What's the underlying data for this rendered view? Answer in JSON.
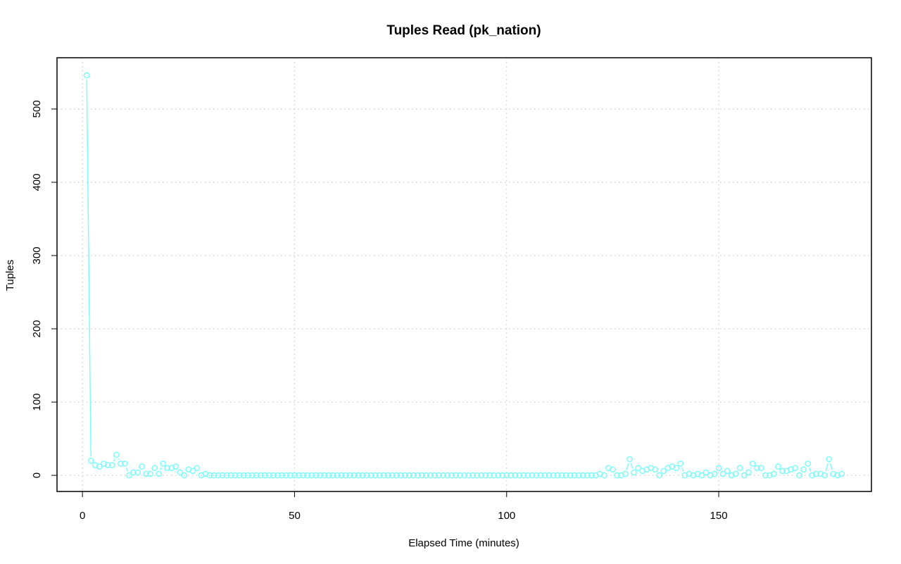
{
  "chart_data": {
    "type": "line",
    "title": "Tuples Read (pk_nation)",
    "xlabel": "Elapsed Time (minutes)",
    "ylabel": "Tuples",
    "xlim": [
      -6,
      186
    ],
    "ylim": [
      -22,
      570
    ],
    "x_ticks": [
      0,
      50,
      100,
      150
    ],
    "y_ticks": [
      0,
      100,
      200,
      300,
      400,
      500
    ],
    "x_tick_labels": [
      "0",
      "50",
      "100",
      "150"
    ],
    "y_tick_labels": [
      "0",
      "100",
      "200",
      "300",
      "400",
      "500"
    ],
    "grid": true,
    "series_color": "#7ffbfb",
    "series": [
      {
        "x": [
          1,
          2,
          3,
          4,
          5,
          6,
          7,
          8,
          9,
          10,
          11,
          12,
          13,
          14,
          15,
          16,
          17,
          18,
          19,
          20,
          21,
          22,
          23,
          24,
          25,
          26,
          27,
          28,
          29,
          30,
          31,
          32,
          33,
          34,
          35,
          36,
          37,
          38,
          39,
          40,
          41,
          42,
          43,
          44,
          45,
          46,
          47,
          48,
          49,
          50,
          51,
          52,
          53,
          54,
          55,
          56,
          57,
          58,
          59,
          60,
          61,
          62,
          63,
          64,
          65,
          66,
          67,
          68,
          69,
          70,
          71,
          72,
          73,
          74,
          75,
          76,
          77,
          78,
          79,
          80,
          81,
          82,
          83,
          84,
          85,
          86,
          87,
          88,
          89,
          90,
          91,
          92,
          93,
          94,
          95,
          96,
          97,
          98,
          99,
          100,
          101,
          102,
          103,
          104,
          105,
          106,
          107,
          108,
          109,
          110,
          111,
          112,
          113,
          114,
          115,
          116,
          117,
          118,
          119,
          120,
          121,
          122,
          123,
          124,
          125,
          126,
          127,
          128,
          129,
          130,
          131,
          132,
          133,
          134,
          135,
          136,
          137,
          138,
          139,
          140,
          141,
          142,
          143,
          144,
          145,
          146,
          147,
          148,
          149,
          150,
          151,
          152,
          153,
          154,
          155,
          156,
          157,
          158,
          159,
          160,
          161,
          162,
          163,
          164,
          165,
          166,
          167,
          168,
          169,
          170,
          171,
          172,
          173,
          174,
          175,
          176,
          177,
          178,
          179
        ],
        "values": [
          546,
          20,
          14,
          12,
          16,
          14,
          14,
          28,
          16,
          16,
          0,
          4,
          4,
          12,
          2,
          2,
          10,
          2,
          16,
          10,
          10,
          12,
          4,
          0,
          8,
          6,
          10,
          0,
          2,
          0,
          0,
          0,
          0,
          0,
          0,
          0,
          0,
          0,
          0,
          0,
          0,
          0,
          0,
          0,
          0,
          0,
          0,
          0,
          0,
          0,
          0,
          0,
          0,
          0,
          0,
          0,
          0,
          0,
          0,
          0,
          0,
          0,
          0,
          0,
          0,
          0,
          0,
          0,
          0,
          0,
          0,
          0,
          0,
          0,
          0,
          0,
          0,
          0,
          0,
          0,
          0,
          0,
          0,
          0,
          0,
          0,
          0,
          0,
          0,
          0,
          0,
          0,
          0,
          0,
          0,
          0,
          0,
          0,
          0,
          0,
          0,
          0,
          0,
          0,
          0,
          0,
          0,
          0,
          0,
          0,
          0,
          0,
          0,
          0,
          0,
          0,
          0,
          0,
          0,
          0,
          0,
          2,
          0,
          10,
          8,
          0,
          0,
          2,
          22,
          4,
          10,
          6,
          8,
          10,
          8,
          0,
          6,
          10,
          12,
          10,
          16,
          0,
          2,
          0,
          2,
          0,
          4,
          0,
          2,
          10,
          2,
          6,
          0,
          2,
          10,
          0,
          4,
          16,
          10,
          10,
          0,
          0,
          2,
          12,
          6,
          6,
          8,
          10,
          0,
          8,
          16,
          0,
          2,
          2,
          0,
          22,
          2,
          0,
          2
        ]
      }
    ]
  }
}
